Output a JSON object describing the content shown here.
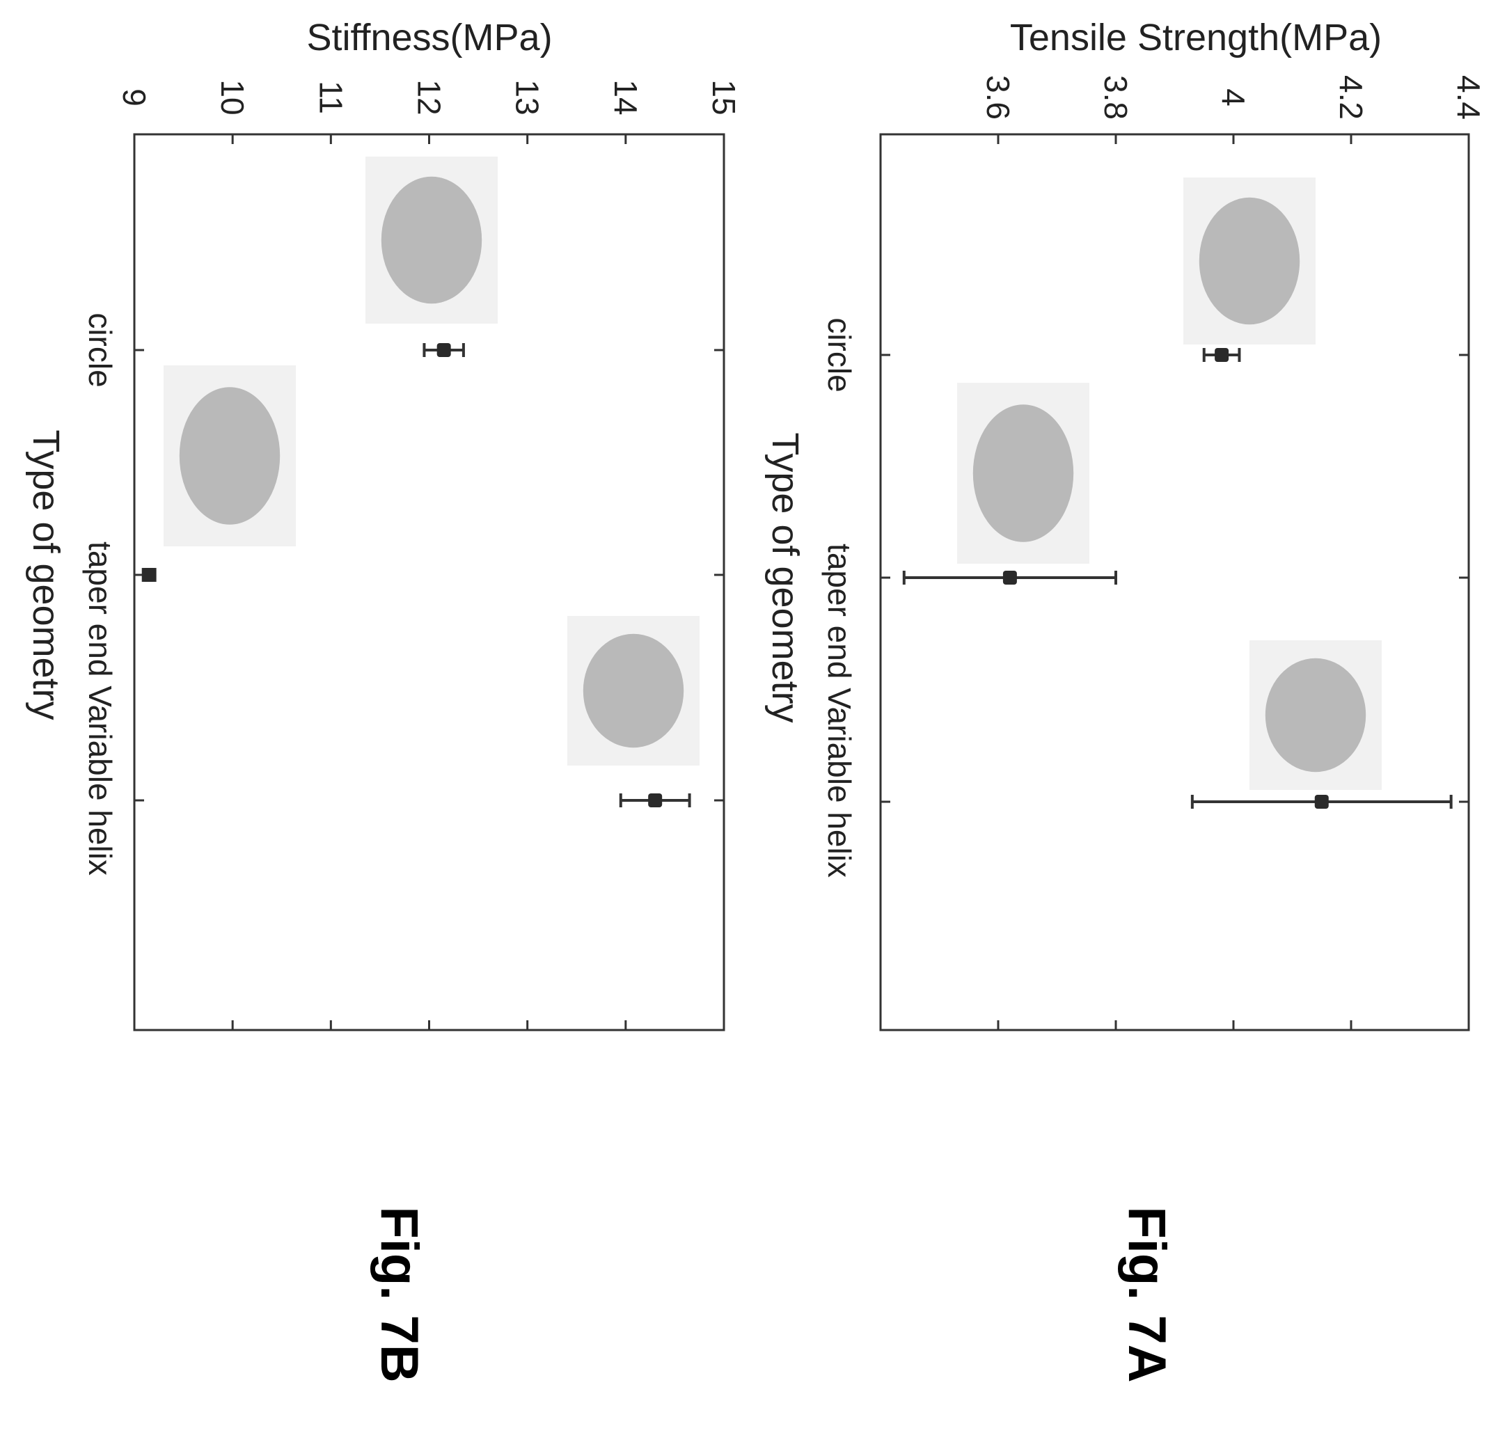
{
  "figures": [
    {
      "label": "Fig. 7A"
    },
    {
      "label": "Fig. 7B"
    }
  ],
  "chart_data": [
    {
      "type": "scatter",
      "figure_label": "Fig. 7A",
      "title": "",
      "xlabel": "Type of geometry",
      "ylabel": "Tensile Strength(MPa)",
      "categories": [
        "circle",
        "taper end",
        "Variable helix"
      ],
      "category_label_line": "taper end Variable helix",
      "values": [
        3.98,
        3.62,
        4.15
      ],
      "error": [
        0.03,
        0.18,
        0.22
      ],
      "ylim": [
        3.4,
        4.4
      ],
      "yticks": [
        "3.6",
        "3.8",
        "4",
        "4.2",
        "4.4"
      ],
      "ytick_values": [
        3.6,
        3.8,
        4.0,
        4.2,
        4.4
      ],
      "grid": false,
      "point_color": "#2a2a2a"
    },
    {
      "type": "scatter",
      "figure_label": "Fig. 7B",
      "title": "",
      "xlabel": "Type of geometry",
      "ylabel": "Stiffness(MPa)",
      "categories": [
        "circle",
        "taper end",
        "Variable helix"
      ],
      "category_label_line": "taper end Variable helix",
      "values": [
        12.15,
        9.15,
        14.3
      ],
      "error": [
        0.2,
        0.06,
        0.35
      ],
      "ylim": [
        9,
        15
      ],
      "yticks": [
        "9",
        "10",
        "11",
        "12",
        "13",
        "14",
        "15"
      ],
      "ytick_values": [
        9,
        10,
        11,
        12,
        13,
        14,
        15
      ],
      "grid": false,
      "point_color": "#2a2a2a"
    }
  ]
}
